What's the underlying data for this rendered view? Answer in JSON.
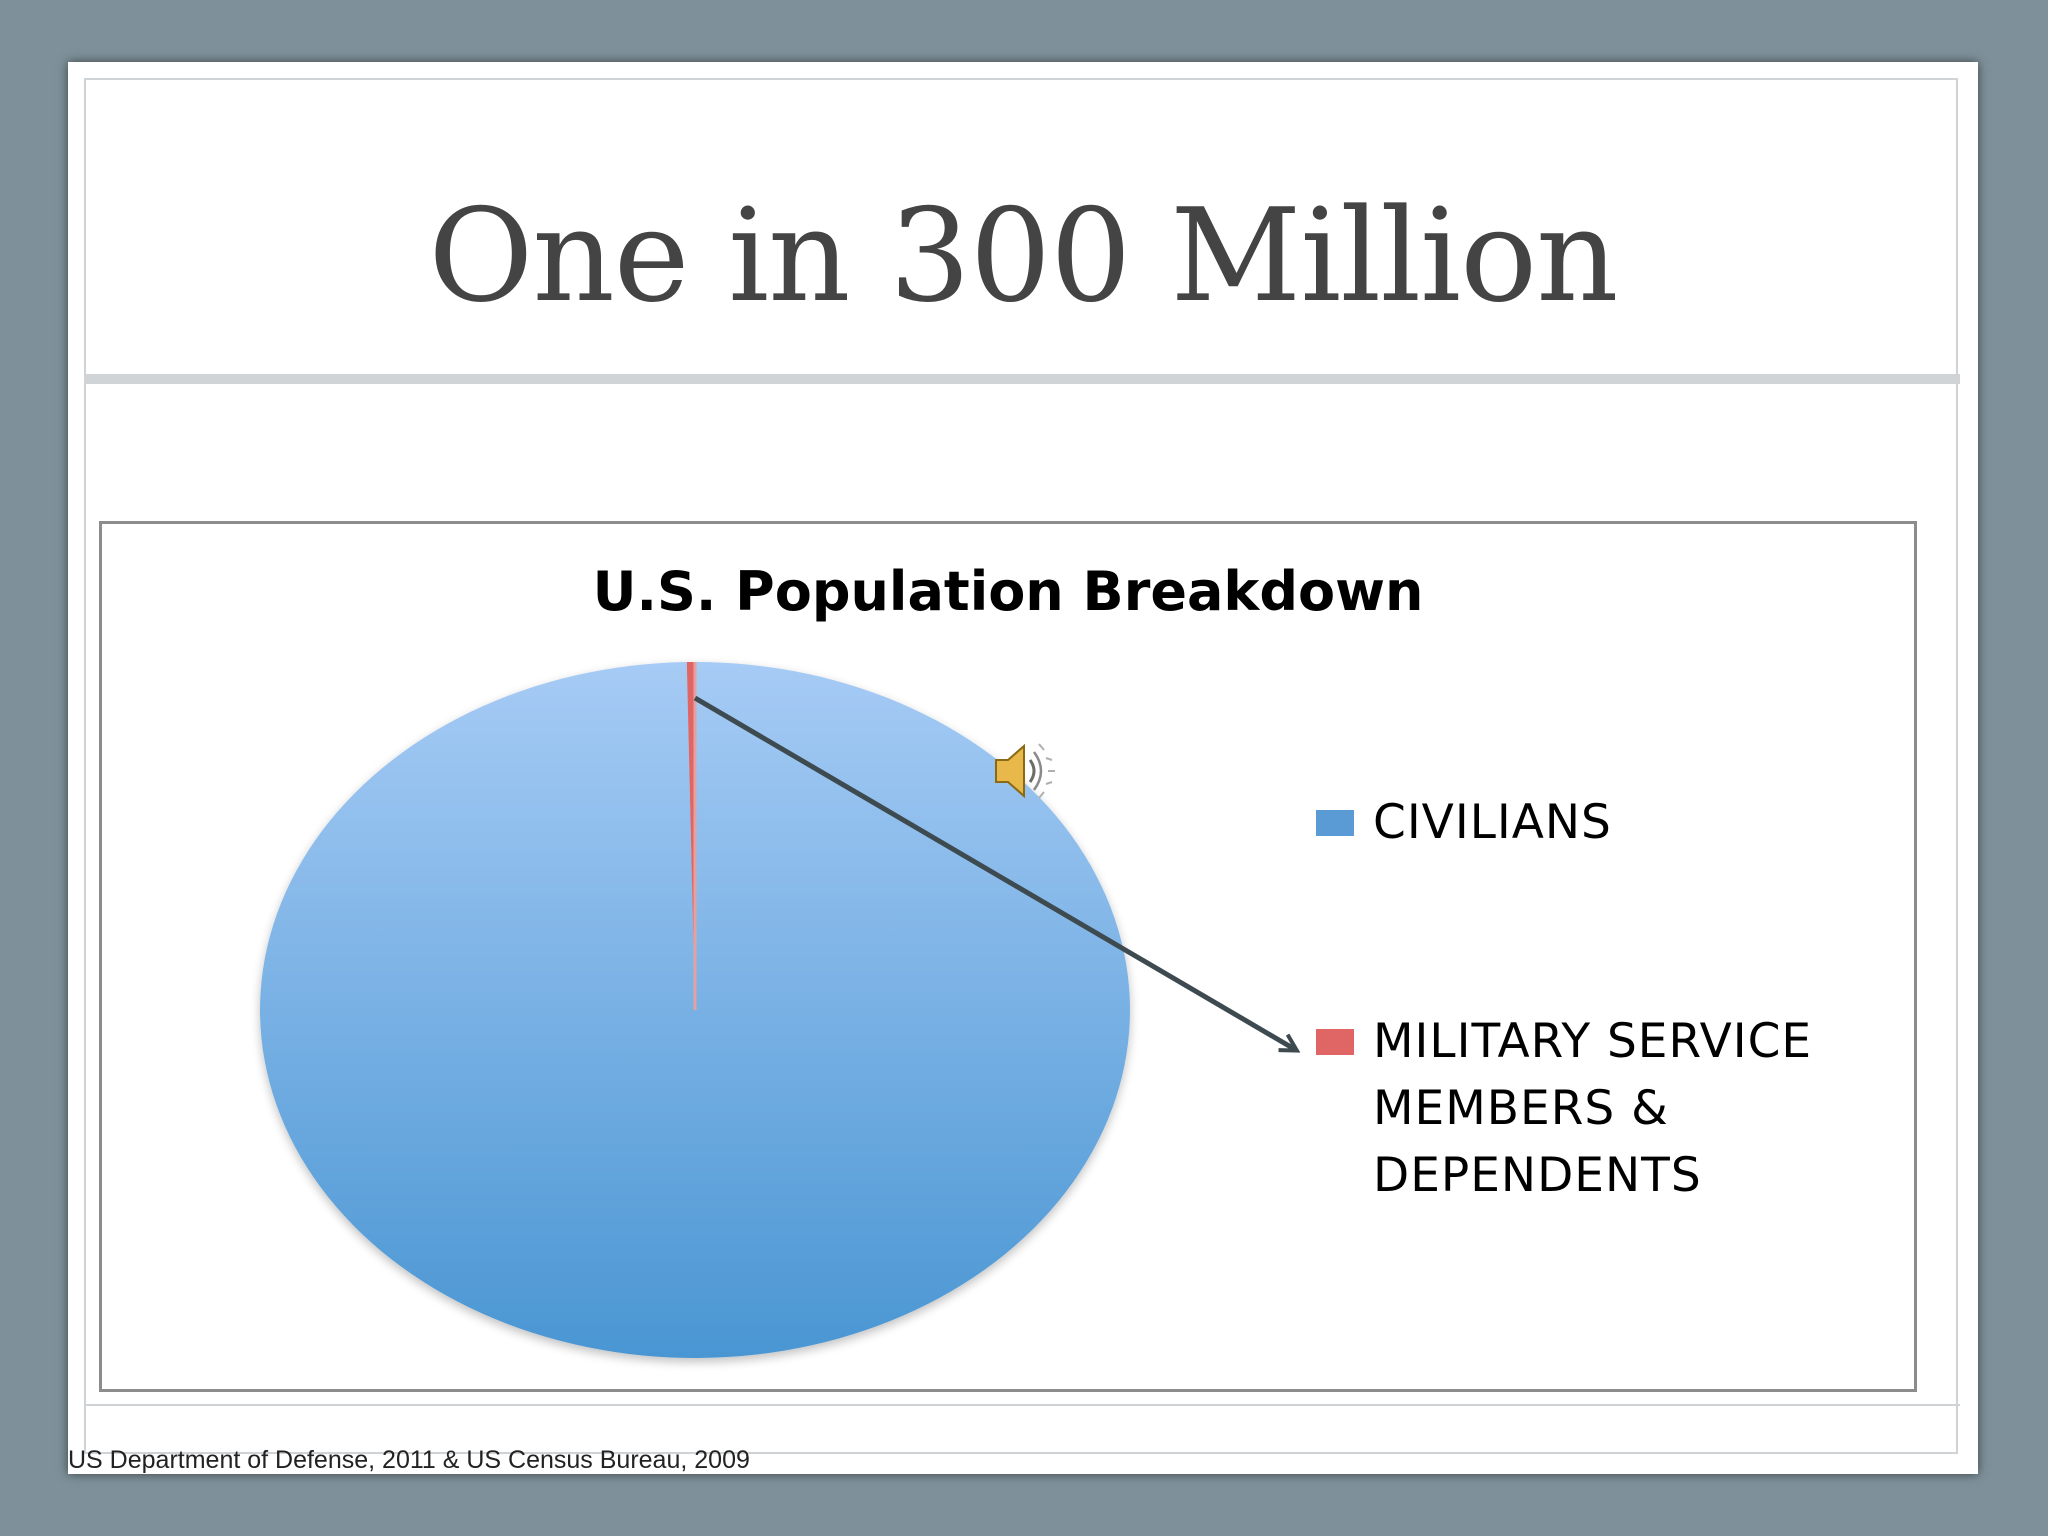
{
  "slide": {
    "title": "One in 300 Million",
    "source_note": "US Department of Defense, 2011 & US Census Bureau, 2009"
  },
  "chart_data": {
    "type": "pie",
    "title": "U.S. Population Breakdown",
    "series": [
      {
        "name": "CIVILIANS",
        "value": 99.7,
        "color": "#5b9bd5"
      },
      {
        "name": "MILITARY SERVICE MEMBERS & DEPENDENTS",
        "value": 0.3,
        "color": "#e06666"
      }
    ],
    "legend_position": "right",
    "legend": [
      {
        "label_lines": [
          "CIVILIANS"
        ],
        "color": "#5b9bd5"
      },
      {
        "label_lines": [
          "MILITARY SERVICE",
          "MEMBERS &",
          "DEPENDENTS"
        ],
        "color": "#e06666"
      }
    ],
    "annotation": "arrow from the military slice to its legend entry"
  },
  "icons": {
    "audio": "speaker-icon"
  },
  "colors": {
    "background": "#7e919a",
    "slide": "#ffffff",
    "title": "#444444",
    "arrow": "#3d4a4f"
  }
}
